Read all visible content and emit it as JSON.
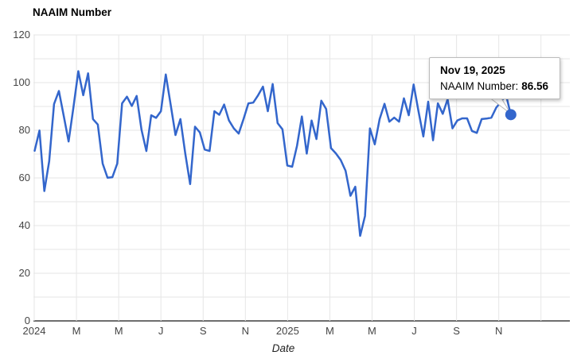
{
  "chart": {
    "title": "NAAIM Number",
    "xlabel": "Date"
  },
  "tooltip": {
    "date": "Nov 19, 2025",
    "series_label": "NAAIM Number:",
    "value": "86.56"
  },
  "colors": {
    "line": "#3366CC",
    "marker": "#3366CC",
    "gridline": "#e6e6e6",
    "axis_baseline": "#6e6e6e",
    "tick_label": "#444444",
    "title_text": "#000000",
    "tooltip_border": "#bcbcbc",
    "tooltip_bg": "#ffffff",
    "callout_stroke": "#b8b8b8"
  },
  "chart_data": {
    "type": "line",
    "title": "NAAIM Number",
    "xlabel": "Date",
    "ylabel": "",
    "series_name": "NAAIM Number",
    "frequency": "weekly",
    "x_tick_labels": [
      "2024",
      "M",
      "M",
      "J",
      "S",
      "N",
      "2025",
      "M",
      "M",
      "J",
      "S",
      "N"
    ],
    "y_ticks": [
      0,
      20,
      40,
      60,
      80,
      100,
      120
    ],
    "ylim": [
      0,
      120
    ],
    "y_gridline_step": 10,
    "grid": true,
    "legend": "none",
    "values": [
      71.4,
      79.9,
      54.5,
      67.0,
      91.0,
      96.5,
      86.0,
      75.3,
      89.7,
      104.8,
      94.7,
      103.9,
      84.7,
      82.4,
      66.0,
      60.1,
      60.3,
      66.0,
      91.3,
      94.1,
      90.2,
      94.4,
      80.2,
      71.3,
      86.3,
      85.2,
      88.0,
      103.4,
      90.8,
      78.0,
      84.7,
      70.2,
      57.4,
      81.5,
      79.1,
      71.9,
      71.3,
      88.0,
      86.5,
      90.8,
      84.1,
      80.8,
      78.6,
      84.7,
      91.3,
      91.6,
      94.7,
      98.3,
      88.0,
      99.4,
      83.0,
      80.4,
      65.2,
      64.7,
      73.5,
      85.8,
      70.2,
      84.1,
      76.3,
      92.4,
      88.9,
      72.5,
      70.3,
      67.5,
      63.0,
      52.5,
      56.3,
      35.7,
      44.0,
      80.8,
      74.1,
      84.7,
      91.1,
      83.6,
      85.3,
      83.6,
      93.4,
      86.3,
      99.2,
      88.0,
      77.4,
      92.0,
      75.8,
      91.3,
      86.9,
      93.0,
      80.8,
      84.1,
      85.0,
      85.0,
      79.7,
      78.9,
      84.7,
      84.9,
      85.3,
      89.5,
      92.0,
      95.0,
      86.56
    ],
    "last_point": {
      "date": "Nov 19, 2025",
      "value": 86.56
    }
  }
}
